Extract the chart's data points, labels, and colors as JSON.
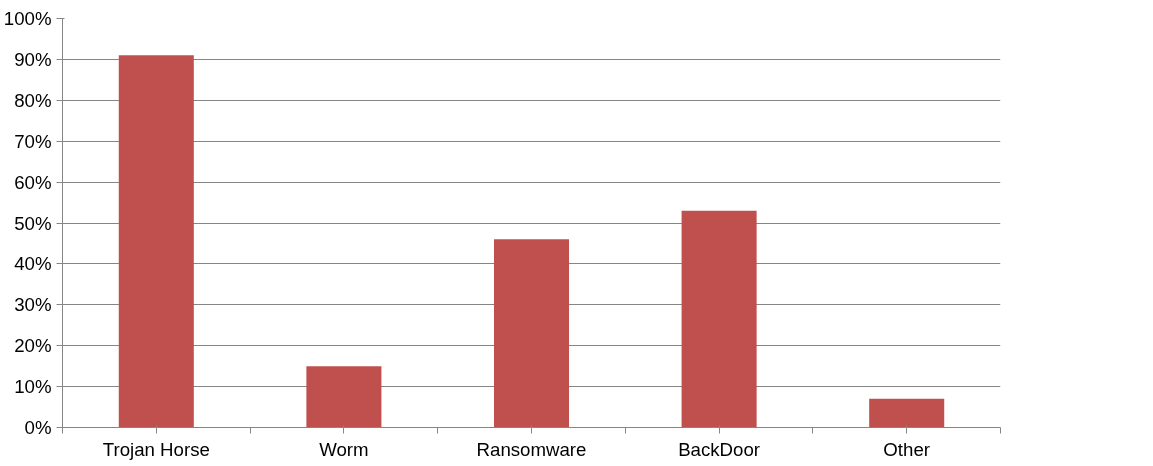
{
  "chart_data": {
    "type": "bar",
    "categories": [
      "Trojan Horse",
      "Worm",
      "Ransomware",
      "BackDoor",
      "Other"
    ],
    "series": [
      {
        "color": "#c0504d",
        "values": [
          91,
          15,
          46,
          53,
          7
        ]
      }
    ],
    "ylim": [
      0,
      100
    ],
    "yticks": [
      {
        "value": 0,
        "label": "0%"
      },
      {
        "value": 10,
        "label": "10%"
      },
      {
        "value": 20,
        "label": "20%"
      },
      {
        "value": 30,
        "label": "30%"
      },
      {
        "value": 40,
        "label": "40%"
      },
      {
        "value": 50,
        "label": "50%"
      },
      {
        "value": 60,
        "label": "60%"
      },
      {
        "value": 70,
        "label": "70%"
      },
      {
        "value": 80,
        "label": "80%"
      },
      {
        "value": 90,
        "label": "90%"
      },
      {
        "value": 100,
        "label": "100%"
      }
    ],
    "grid": "y"
  }
}
